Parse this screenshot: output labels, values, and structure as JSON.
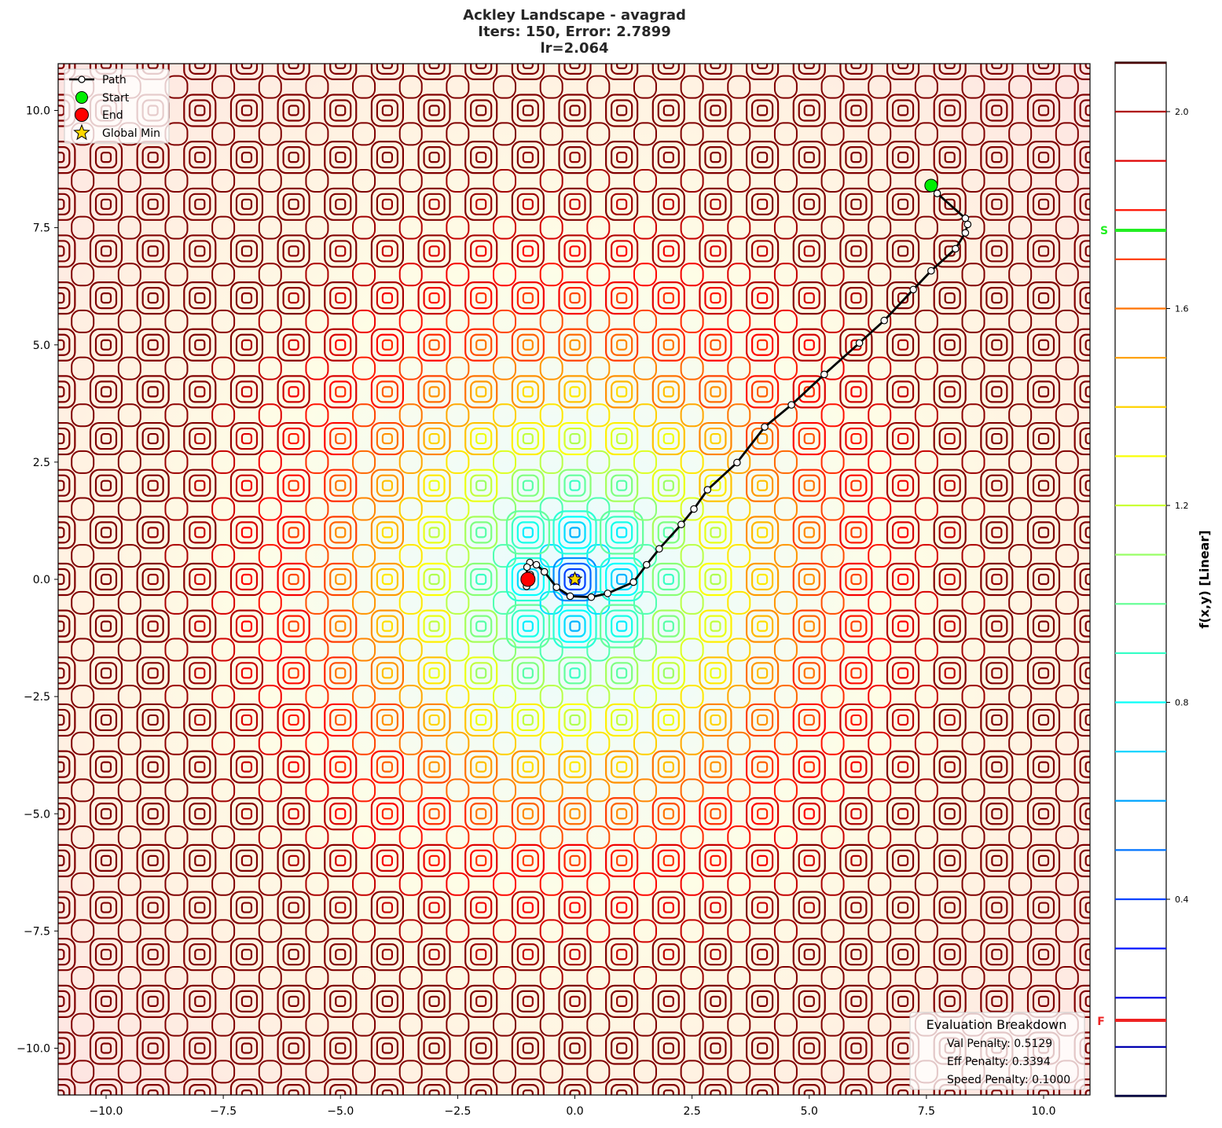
{
  "title": {
    "line1": "Ackley Landscape - avagrad",
    "line2": "Iters: 150, Error: 2.7899",
    "line3": "lr=2.064"
  },
  "legend": {
    "items": [
      {
        "label": "Path",
        "icon": "line-with-circle-marker",
        "color": "#000000"
      },
      {
        "label": "Start",
        "icon": "green-circle",
        "color": "#00ee00"
      },
      {
        "label": "End",
        "icon": "red-circle",
        "color": "#ff0000"
      },
      {
        "label": "Global Min",
        "icon": "gold-star",
        "color": "#ffd700"
      }
    ]
  },
  "evaluation": {
    "title": "Evaluation Breakdown",
    "lines": [
      "Val Penalty: 0.5129",
      "Eff Penalty: 0.3394",
      "Speed Penalty: 0.1000"
    ]
  },
  "colorbar": {
    "label": "f(x,y) [Linear]",
    "ticks": [
      "2.0",
      "1.6",
      "1.2",
      "0.8",
      "0.4"
    ],
    "start_marker": "S",
    "end_marker": "F",
    "start_color": "#22ee22",
    "end_color": "#ee2222"
  },
  "x_ticks": [
    "−10.0",
    "−7.5",
    "−5.0",
    "−2.5",
    "0.0",
    "2.5",
    "5.0",
    "7.5",
    "10.0"
  ],
  "y_ticks": [
    "10.0",
    "7.5",
    "5.0",
    "2.5",
    "0.0",
    "−2.5",
    "−5.0",
    "−7.5",
    "−10.0"
  ],
  "chart_data": {
    "type": "contour",
    "title": "Ackley Landscape - avagrad\nIters: 150, Error: 2.7899\nlr=2.064",
    "function": "Ackley",
    "optimizer": "avagrad",
    "iterations": 150,
    "error": 2.7899,
    "learning_rate": 2.064,
    "xlabel": "",
    "ylabel": "",
    "xlim": [
      -11,
      11
    ],
    "ylim": [
      -11,
      11
    ],
    "x_ticks": [
      -10.0,
      -7.5,
      -5.0,
      -2.5,
      0.0,
      2.5,
      5.0,
      7.5,
      10.0
    ],
    "y_ticks": [
      -10.0,
      -7.5,
      -5.0,
      -2.5,
      0.0,
      2.5,
      5.0,
      7.5,
      10.0
    ],
    "colormap": "jet",
    "colorbar": {
      "label": "f(x,y) [Linear]",
      "ticks": [
        0.4,
        0.8,
        1.2,
        1.6,
        2.0
      ],
      "range": [
        0.0,
        2.2
      ],
      "level_values": [
        0.1,
        0.2,
        0.3,
        0.4,
        0.5,
        0.6,
        0.7,
        0.8,
        0.9,
        1.0,
        1.1,
        1.2,
        1.3,
        1.4,
        1.5,
        1.6,
        1.7,
        1.8,
        1.9,
        2.0,
        2.1
      ],
      "start_value_marker": {
        "label": "S",
        "value": 1.75,
        "color": "#22ee22"
      },
      "end_value_marker": {
        "label": "F",
        "value": 0.16,
        "color": "#ee2222"
      }
    },
    "global_min": {
      "x": 0.0,
      "y": 0.0
    },
    "start": {
      "x": 7.6,
      "y": 8.4
    },
    "end": {
      "x": -1.0,
      "y": 0.0
    },
    "path": {
      "x": [
        7.6,
        7.73,
        8.33,
        8.38,
        8.33,
        8.12,
        7.6,
        7.22,
        6.6,
        6.07,
        5.32,
        4.62,
        4.05,
        3.46,
        2.83,
        2.54,
        2.27,
        1.8,
        1.53,
        1.25,
        0.7,
        0.35,
        -0.1,
        -0.39,
        -0.65,
        -0.82,
        -0.96,
        -1.02,
        -1.03,
        -0.95,
        -1.0
      ],
      "y": [
        8.4,
        8.23,
        7.7,
        7.57,
        7.39,
        7.05,
        6.58,
        6.18,
        5.52,
        5.04,
        4.37,
        3.72,
        3.25,
        2.49,
        1.91,
        1.5,
        1.17,
        0.65,
        0.31,
        -0.06,
        -0.3,
        -0.38,
        -0.36,
        -0.17,
        0.16,
        0.31,
        0.36,
        0.26,
        -0.15,
        0.1,
        0.0
      ]
    },
    "legend": [
      "Path",
      "Start",
      "End",
      "Global Min"
    ],
    "legend_position": "upper left",
    "annotation_box": {
      "title": "Evaluation Breakdown",
      "val_penalty": 0.5129,
      "eff_penalty": 0.3394,
      "speed_penalty": 0.1,
      "position": "lower right"
    },
    "grid": false
  }
}
